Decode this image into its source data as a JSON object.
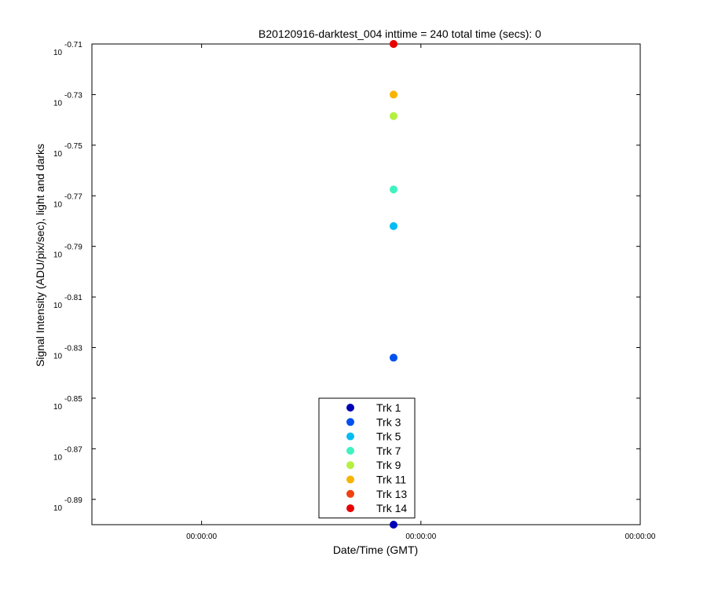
{
  "chart_data": {
    "type": "scatter",
    "title": "B20120916-darktest_004 inttime = 240 total time (secs): 0",
    "xlabel": "Date/Time (GMT)",
    "ylabel": "Signal Intensity (ADU/pix/sec), light and darks",
    "y_scale": "log",
    "y_exponent_range": [
      -0.9,
      -0.71
    ],
    "y_tick_base": "10",
    "y_tick_exponents": [
      "-0.71",
      "-0.73",
      "-0.75",
      "-0.77",
      "-0.79",
      "-0.81",
      "-0.83",
      "-0.85",
      "-0.87",
      "-0.89"
    ],
    "x_tick_labels": [
      "00:00:00",
      "00:00:00",
      "00:00:00"
    ],
    "grid": false,
    "legend_position": "bottom-center",
    "series": [
      {
        "name": "Trk 1",
        "color": "#0000b4",
        "y_exponent": -0.9
      },
      {
        "name": "Trk 3",
        "color": "#0050f0",
        "y_exponent": -0.834
      },
      {
        "name": "Trk 5",
        "color": "#00bcf2",
        "y_exponent": -0.782
      },
      {
        "name": "Trk 7",
        "color": "#40f2c0",
        "y_exponent": -0.7675
      },
      {
        "name": "Trk 9",
        "color": "#b4f040",
        "y_exponent": -0.7385
      },
      {
        "name": "Trk 11",
        "color": "#f8b400",
        "y_exponent": -0.73
      },
      {
        "name": "Trk 13",
        "color": "#f04010",
        "y_exponent": -0.71
      },
      {
        "name": "Trk 14",
        "color": "#e80000",
        "y_exponent": -0.71
      }
    ]
  }
}
